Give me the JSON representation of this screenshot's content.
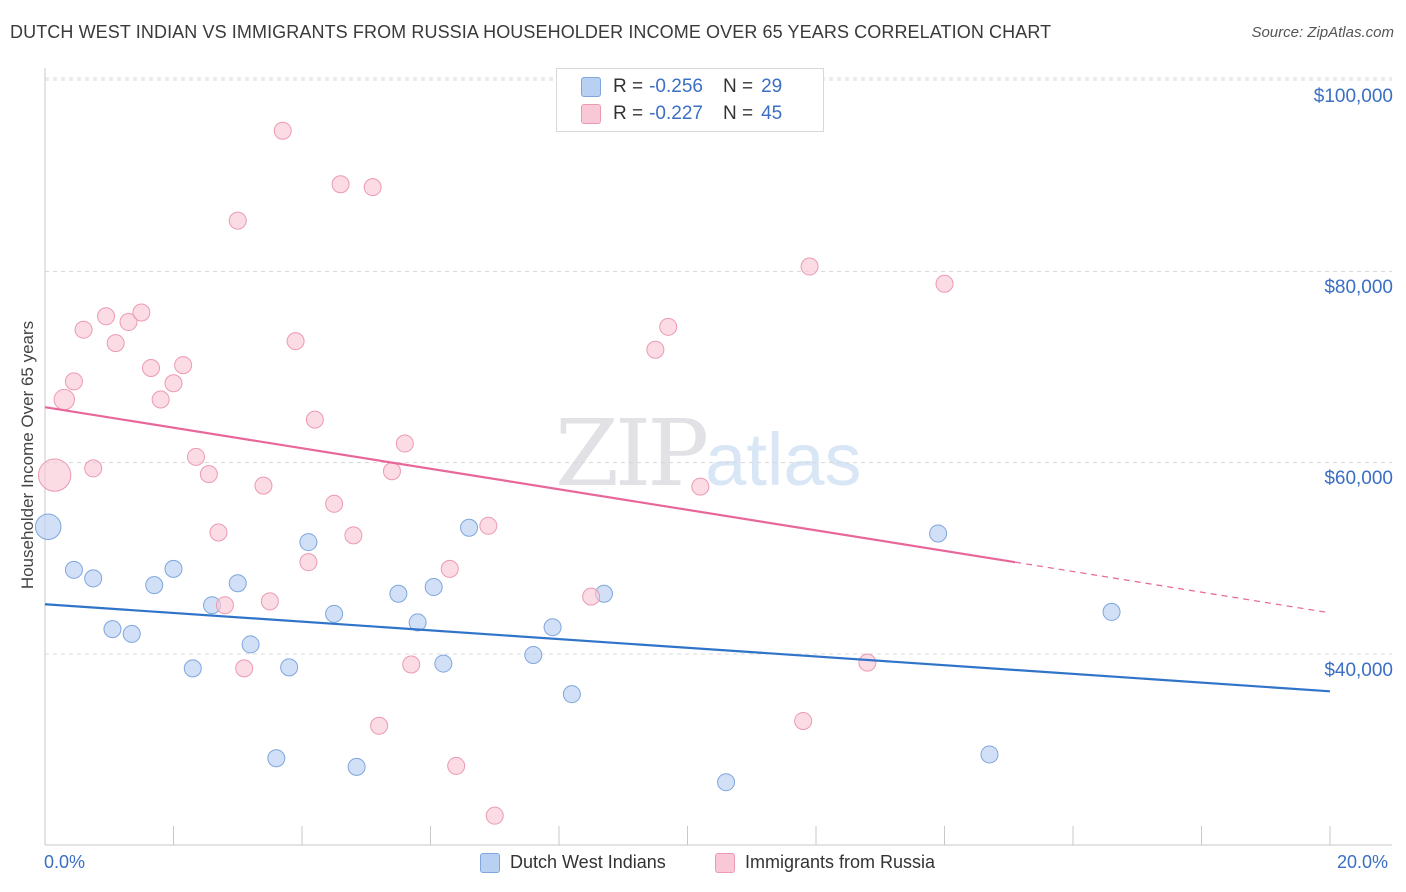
{
  "title": "DUTCH WEST INDIAN VS IMMIGRANTS FROM RUSSIA HOUSEHOLDER INCOME OVER 65 YEARS CORRELATION CHART",
  "source": "Source: ZipAtlas.com",
  "watermark": {
    "zip": "ZIP",
    "atlas": "atlas"
  },
  "colors": {
    "blue_fill": "#b8d0f2",
    "blue_stroke": "#7fa6dd",
    "blue_line": "#2f74c9",
    "pink_fill": "#f9c8d6",
    "pink_stroke": "#ec9ab3",
    "pink_line": "#e8679a",
    "tick_text": "#3a6fc4",
    "grid": "#d8d8d8"
  },
  "legend_top": [
    {
      "r_label": "R =",
      "r_value": "-0.256",
      "n_label": "N =",
      "n_value": "29"
    },
    {
      "r_label": "R =",
      "r_value": "-0.227",
      "n_label": "N =",
      "n_value": "45"
    }
  ],
  "chart_data": {
    "type": "scatter",
    "title": "DUTCH WEST INDIAN VS IMMIGRANTS FROM RUSSIA HOUSEHOLDER INCOME OVER 65 YEARS CORRELATION CHART",
    "xlabel": "",
    "ylabel": "Householder Income Over 65 years",
    "xlim": [
      0,
      20
    ],
    "ylim": [
      20000,
      102000
    ],
    "x_tick_labels": [
      "0.0%",
      "20.0%"
    ],
    "y_ticks": [
      40000,
      60000,
      80000,
      100000
    ],
    "y_tick_labels": [
      "$40,000",
      "$60,000",
      "$80,000",
      "$100,000"
    ],
    "legend_position": "bottom-center",
    "series": [
      {
        "name": "Dutch West Indians",
        "color": "blue",
        "trend": {
          "x0": 0,
          "y0": 45200,
          "x1": 20,
          "y1": 36100
        },
        "points": [
          {
            "x": 0.05,
            "y": 53300,
            "s": 1.5
          },
          {
            "x": 0.45,
            "y": 48800
          },
          {
            "x": 0.75,
            "y": 47900
          },
          {
            "x": 1.05,
            "y": 42600
          },
          {
            "x": 1.35,
            "y": 42100
          },
          {
            "x": 1.7,
            "y": 47200
          },
          {
            "x": 2.0,
            "y": 48900
          },
          {
            "x": 2.3,
            "y": 38500
          },
          {
            "x": 2.6,
            "y": 45100
          },
          {
            "x": 3.0,
            "y": 47400
          },
          {
            "x": 3.2,
            "y": 41000
          },
          {
            "x": 3.6,
            "y": 29100
          },
          {
            "x": 3.8,
            "y": 38600
          },
          {
            "x": 4.1,
            "y": 51700
          },
          {
            "x": 4.5,
            "y": 44200
          },
          {
            "x": 4.85,
            "y": 28200
          },
          {
            "x": 5.5,
            "y": 46300
          },
          {
            "x": 5.8,
            "y": 43300
          },
          {
            "x": 6.05,
            "y": 47000
          },
          {
            "x": 6.2,
            "y": 39000
          },
          {
            "x": 6.6,
            "y": 53200
          },
          {
            "x": 7.6,
            "y": 39900
          },
          {
            "x": 7.9,
            "y": 42800
          },
          {
            "x": 8.2,
            "y": 35800
          },
          {
            "x": 8.7,
            "y": 46300
          },
          {
            "x": 10.6,
            "y": 26600
          },
          {
            "x": 13.9,
            "y": 52600
          },
          {
            "x": 14.7,
            "y": 29500
          },
          {
            "x": 16.6,
            "y": 44400
          }
        ]
      },
      {
        "name": "Immigrants from Russia",
        "color": "pink",
        "trend": {
          "x0": 0,
          "y0": 65800,
          "x1": 15.1,
          "y1": 49600
        },
        "trend_dashed": {
          "x0": 15.1,
          "y0": 49600,
          "x1": 20,
          "y1": 44300
        },
        "points": [
          {
            "x": 0.15,
            "y": 58700,
            "s": 1.9
          },
          {
            "x": 0.3,
            "y": 66600,
            "s": 1.2
          },
          {
            "x": 0.45,
            "y": 68500
          },
          {
            "x": 0.6,
            "y": 73900
          },
          {
            "x": 0.75,
            "y": 59400
          },
          {
            "x": 0.95,
            "y": 75300
          },
          {
            "x": 1.1,
            "y": 72500
          },
          {
            "x": 1.3,
            "y": 74700
          },
          {
            "x": 1.5,
            "y": 75700
          },
          {
            "x": 1.65,
            "y": 69900
          },
          {
            "x": 1.8,
            "y": 66600
          },
          {
            "x": 2.0,
            "y": 68300
          },
          {
            "x": 2.15,
            "y": 70200
          },
          {
            "x": 2.35,
            "y": 60600
          },
          {
            "x": 2.55,
            "y": 58800
          },
          {
            "x": 2.8,
            "y": 45100
          },
          {
            "x": 2.7,
            "y": 52700
          },
          {
            "x": 3.0,
            "y": 85300
          },
          {
            "x": 3.1,
            "y": 38500
          },
          {
            "x": 3.4,
            "y": 57600
          },
          {
            "x": 3.5,
            "y": 45500
          },
          {
            "x": 3.7,
            "y": 94700
          },
          {
            "x": 3.9,
            "y": 72700
          },
          {
            "x": 4.1,
            "y": 49600
          },
          {
            "x": 4.2,
            "y": 64500
          },
          {
            "x": 4.5,
            "y": 55700
          },
          {
            "x": 4.6,
            "y": 89100
          },
          {
            "x": 4.8,
            "y": 52400
          },
          {
            "x": 5.1,
            "y": 88800
          },
          {
            "x": 5.2,
            "y": 32500
          },
          {
            "x": 5.4,
            "y": 59100
          },
          {
            "x": 5.6,
            "y": 62000
          },
          {
            "x": 5.7,
            "y": 38900
          },
          {
            "x": 6.3,
            "y": 48900
          },
          {
            "x": 6.4,
            "y": 28300
          },
          {
            "x": 6.9,
            "y": 53400
          },
          {
            "x": 7.0,
            "y": 23100
          },
          {
            "x": 8.5,
            "y": 46000
          },
          {
            "x": 9.5,
            "y": 71800
          },
          {
            "x": 9.7,
            "y": 74200
          },
          {
            "x": 10.2,
            "y": 57500
          },
          {
            "x": 11.8,
            "y": 33000
          },
          {
            "x": 11.9,
            "y": 80500
          },
          {
            "x": 12.8,
            "y": 39100
          },
          {
            "x": 14.0,
            "y": 78700
          }
        ]
      }
    ]
  }
}
